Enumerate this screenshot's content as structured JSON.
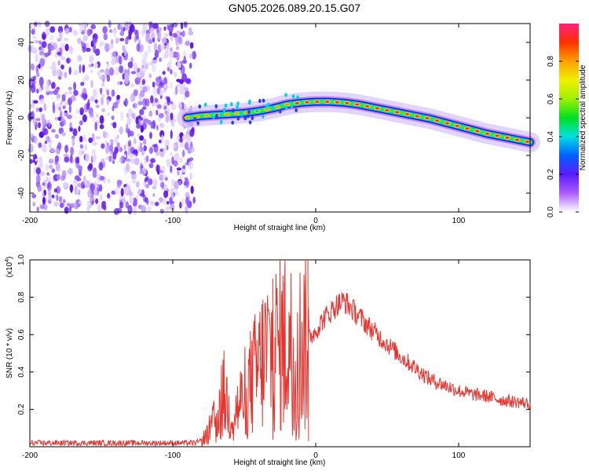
{
  "title": "GN05.2026.089.20.15.G07",
  "chart_data": [
    {
      "type": "heatmap",
      "title": "GN05.2026.089.20.15.G07",
      "xlabel": "Height of straight line (km)",
      "ylabel": "Frequency (Hz)",
      "xlim": [
        -200,
        150
      ],
      "ylim": [
        -50,
        50
      ],
      "x_ticks": [
        -200,
        -100,
        0,
        100
      ],
      "y_ticks": [
        -40,
        -20,
        0,
        20,
        40
      ],
      "colorbar": {
        "label": "Normalized spectral amplitude",
        "range": [
          0.0,
          1.0
        ],
        "ticks": [
          0.0,
          0.2,
          0.4,
          0.6,
          0.8
        ]
      },
      "ridge": {
        "x": [
          -90,
          -80,
          -70,
          -60,
          -50,
          -40,
          -30,
          -20,
          -10,
          0,
          10,
          20,
          30,
          40,
          50,
          60,
          70,
          80,
          90,
          100,
          110,
          120,
          130,
          140,
          150
        ],
        "frequency": [
          0,
          1,
          1.5,
          2,
          2.5,
          3.5,
          5,
          7,
          8,
          8.5,
          8.5,
          8,
          7,
          5.5,
          4,
          2.5,
          1,
          -0.5,
          -2.5,
          -4.5,
          -6.5,
          -8.5,
          -10,
          -11.5,
          -13
        ]
      },
      "noise_region_x": [
        -200,
        -85
      ]
    },
    {
      "type": "line",
      "xlabel": "Height of straight line (km)",
      "ylabel": "SNR (10 * v/v)",
      "exponent_label": "(x10",
      "exponent_power": "4",
      "exponent_close": ")",
      "xlim": [
        -200,
        150
      ],
      "ylim": [
        0,
        1.0
      ],
      "x_ticks": [
        -200,
        -100,
        0,
        100
      ],
      "y_ticks": [
        0.2,
        0.4,
        0.6,
        0.8,
        1.0
      ],
      "series": [
        {
          "name": "SNR",
          "color": "#e8342e",
          "x": [
            -200,
            -150,
            -100,
            -85,
            -80,
            -75,
            -70,
            -67,
            -64,
            -60,
            -55,
            -50,
            -45,
            -40,
            -35,
            -30,
            -25,
            -20,
            -15,
            -10,
            -5,
            0,
            5,
            10,
            15,
            20,
            30,
            40,
            50,
            60,
            70,
            80,
            90,
            100,
            110,
            120,
            130,
            140,
            150
          ],
          "values": [
            0.02,
            0.02,
            0.02,
            0.02,
            0.03,
            0.08,
            0.15,
            0.22,
            0.28,
            0.18,
            0.2,
            0.28,
            0.35,
            0.42,
            0.5,
            0.52,
            0.55,
            0.58,
            0.5,
            0.55,
            0.58,
            0.62,
            0.68,
            0.72,
            0.76,
            0.78,
            0.7,
            0.62,
            0.55,
            0.48,
            0.42,
            0.36,
            0.33,
            0.3,
            0.28,
            0.27,
            0.25,
            0.24,
            0.23
          ]
        }
      ]
    }
  ]
}
